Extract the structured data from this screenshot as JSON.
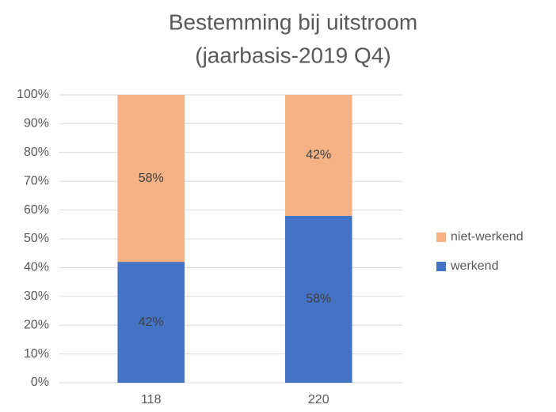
{
  "chart_data": {
    "type": "stacked_bar",
    "title": [
      "Bestemming bij uitstroom",
      "(jaarbasis-2019 Q4)"
    ],
    "categories": [
      "118",
      "220"
    ],
    "series": [
      {
        "name": "werkend",
        "color": "#4472c4",
        "values": [
          42,
          58
        ],
        "value_labels": [
          "42%",
          "58%"
        ]
      },
      {
        "name": "niet-werkend",
        "color": "#f4b183",
        "values": [
          58,
          42
        ],
        "value_labels": [
          "58%",
          "42%"
        ]
      }
    ],
    "ylim": [
      0,
      100
    ],
    "yticks": [
      {
        "value": 0,
        "label": "0%"
      },
      {
        "value": 10,
        "label": "10%"
      },
      {
        "value": 20,
        "label": "20%"
      },
      {
        "value": 30,
        "label": "30%"
      },
      {
        "value": 40,
        "label": "40%"
      },
      {
        "value": 50,
        "label": "50%"
      },
      {
        "value": 60,
        "label": "60%"
      },
      {
        "value": 70,
        "label": "70%"
      },
      {
        "value": 80,
        "label": "80%"
      },
      {
        "value": 90,
        "label": "90%"
      },
      {
        "value": 100,
        "label": "100%"
      }
    ],
    "grid": true,
    "legend": "right"
  }
}
